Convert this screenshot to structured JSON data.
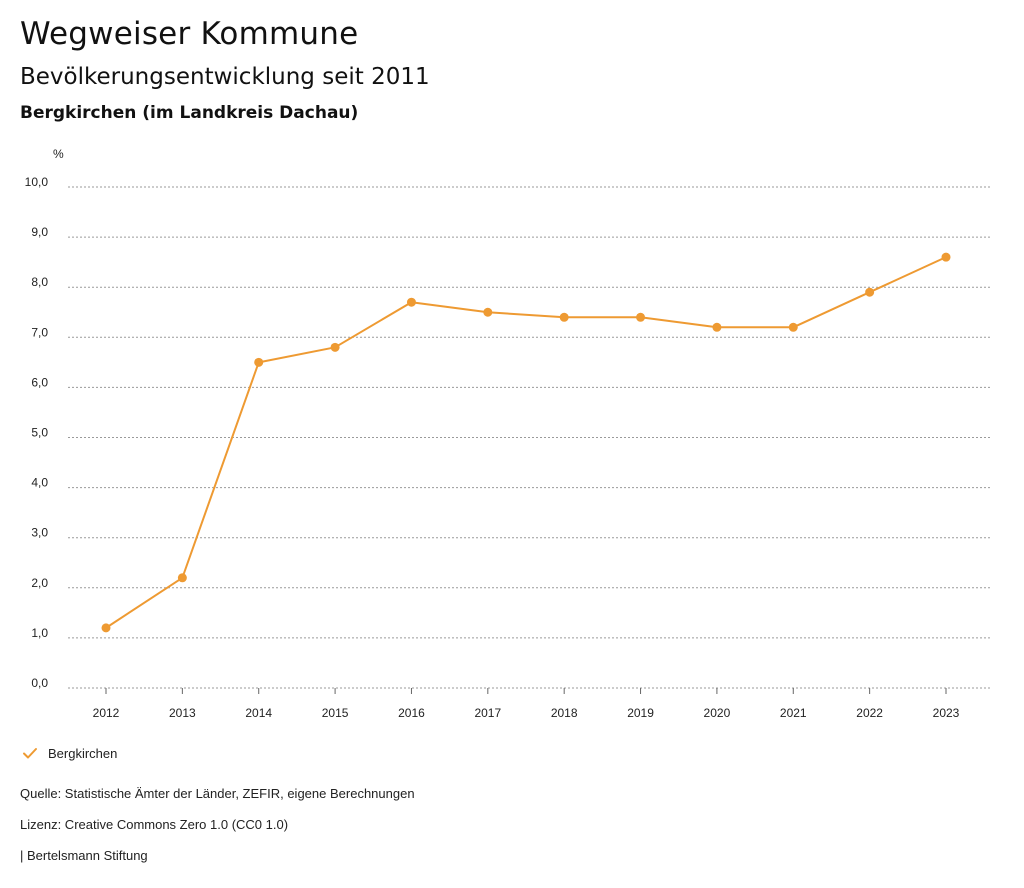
{
  "header": {
    "title": "Wegweiser Kommune",
    "subtitle": "Bevölkerungsentwicklung seit 2011",
    "place": "Bergkirchen (im Landkreis Dachau)"
  },
  "chart_data": {
    "type": "line",
    "ylabel": "%",
    "ylim": [
      0,
      10
    ],
    "yticks": [
      "0,0",
      "1,0",
      "2,0",
      "3,0",
      "4,0",
      "5,0",
      "6,0",
      "7,0",
      "8,0",
      "9,0",
      "10,0"
    ],
    "categories": [
      "2012",
      "2013",
      "2014",
      "2015",
      "2016",
      "2017",
      "2018",
      "2019",
      "2020",
      "2021",
      "2022",
      "2023"
    ],
    "series": [
      {
        "name": "Bergkirchen",
        "color": "#EE9A32",
        "values": [
          1.2,
          2.2,
          6.5,
          6.8,
          7.7,
          7.5,
          7.4,
          7.4,
          7.2,
          7.2,
          7.9,
          8.6
        ]
      }
    ],
    "grid": true,
    "legend": "bottom-left"
  },
  "legend": {
    "label": "Bergkirchen"
  },
  "footer": {
    "source": "Quelle: Statistische Ämter der Länder, ZEFIR, eigene Berechnungen",
    "license": "Lizenz: Creative Commons Zero 1.0 (CC0 1.0)",
    "publisher": "| Bertelsmann Stiftung"
  }
}
